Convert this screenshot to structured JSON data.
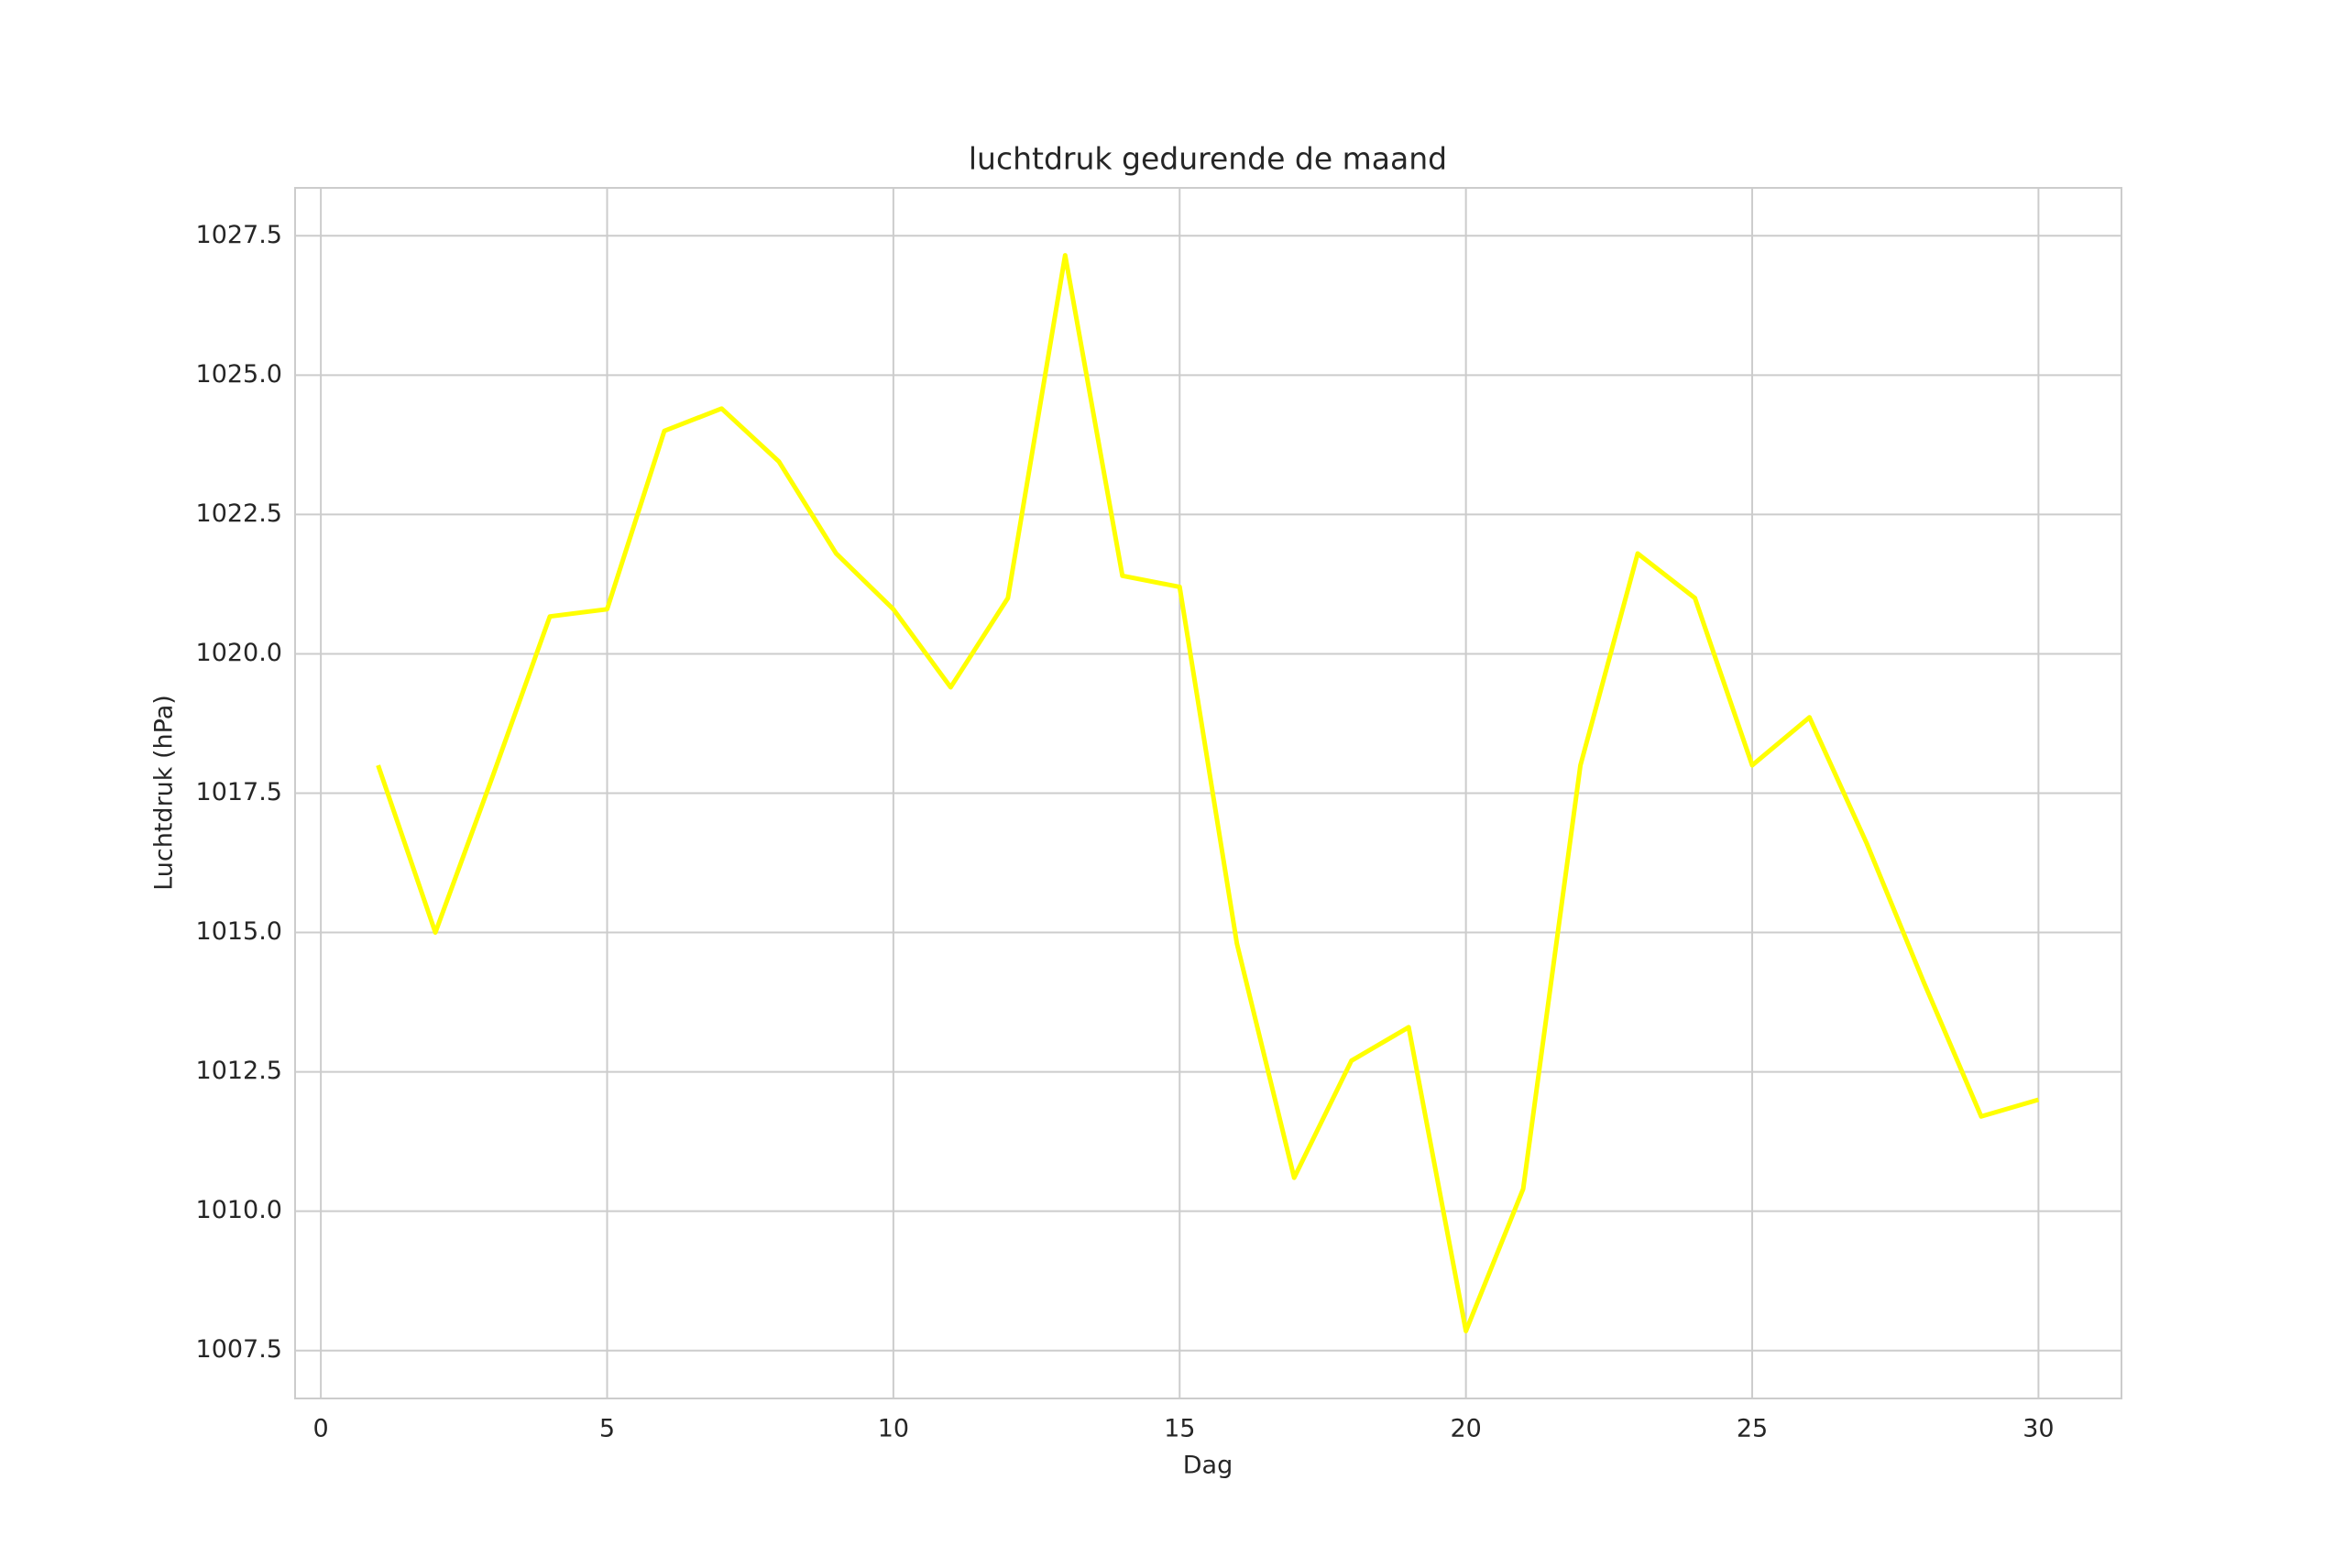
{
  "chart_data": {
    "type": "line",
    "title": "luchtdruk gedurende de maand",
    "xlabel": "Dag",
    "ylabel": "Luchtdruk (hPa)",
    "x": [
      1,
      2,
      3,
      4,
      5,
      6,
      7,
      8,
      9,
      10,
      11,
      12,
      13,
      14,
      15,
      16,
      17,
      18,
      19,
      20,
      21,
      22,
      23,
      24,
      25,
      26,
      27,
      28,
      29,
      30
    ],
    "series": [
      {
        "color": "#ffff00",
        "values": [
          1018.0,
          1015.0,
          1017.8,
          1020.67,
          1020.8,
          1024.0,
          1024.4,
          1023.45,
          1021.8,
          1020.8,
          1019.4,
          1021.0,
          1027.15,
          1021.4,
          1021.2,
          1014.8,
          1010.6,
          1012.7,
          1013.3,
          1007.85,
          1010.4,
          1018.0,
          1021.8,
          1021.0,
          1018.0,
          1018.86,
          1016.6,
          1014.1,
          1011.7,
          1012.0
        ]
      }
    ],
    "xlim": [
      -0.45,
      31.45
    ],
    "xticks": [
      0,
      5,
      10,
      15,
      20,
      25,
      30
    ],
    "ylim": [
      1006.64,
      1028.36
    ],
    "yticks": [
      1007.5,
      {
        "value": 1010,
        "label": "1010.0"
      },
      1012.5,
      {
        "value": 1015,
        "label": "1015.0"
      },
      1017.5,
      {
        "value": 1020,
        "label": "1020.0"
      },
      1022.5,
      {
        "value": 1025,
        "label": "1025.0"
      },
      1027.5
    ],
    "grid": true
  }
}
